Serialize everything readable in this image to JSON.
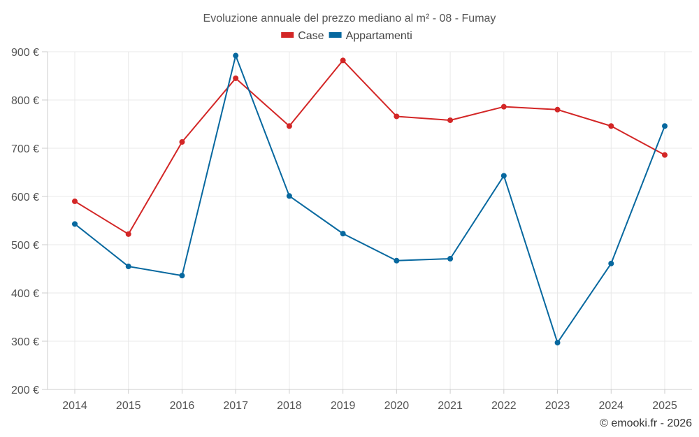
{
  "chart_data": {
    "type": "line",
    "title": "Evoluzione annuale del prezzo mediano al m² - 08 - Fumay",
    "categories": [
      "2014",
      "2015",
      "2016",
      "2017",
      "2018",
      "2019",
      "2020",
      "2021",
      "2022",
      "2023",
      "2024",
      "2025"
    ],
    "series": [
      {
        "name": "Case",
        "color": "#d32626",
        "values": [
          590,
          522,
          713,
          845,
          746,
          882,
          766,
          758,
          786,
          780,
          746,
          686
        ]
      },
      {
        "name": "Appartamenti",
        "color": "#07689f",
        "values": [
          543,
          455,
          436,
          892,
          601,
          523,
          467,
          471,
          643,
          297,
          461,
          746
        ]
      }
    ],
    "ylim": [
      200,
      900
    ],
    "yticks": [
      200,
      300,
      400,
      500,
      600,
      700,
      800,
      900
    ],
    "ytick_labels": [
      "200 €",
      "300 €",
      "400 €",
      "500 €",
      "600 €",
      "700 €",
      "800 €",
      "900 €"
    ],
    "xlabel": "",
    "ylabel": "",
    "legend_position": "top-center",
    "grid": true
  },
  "credit": "© emooki.fr - 2026"
}
